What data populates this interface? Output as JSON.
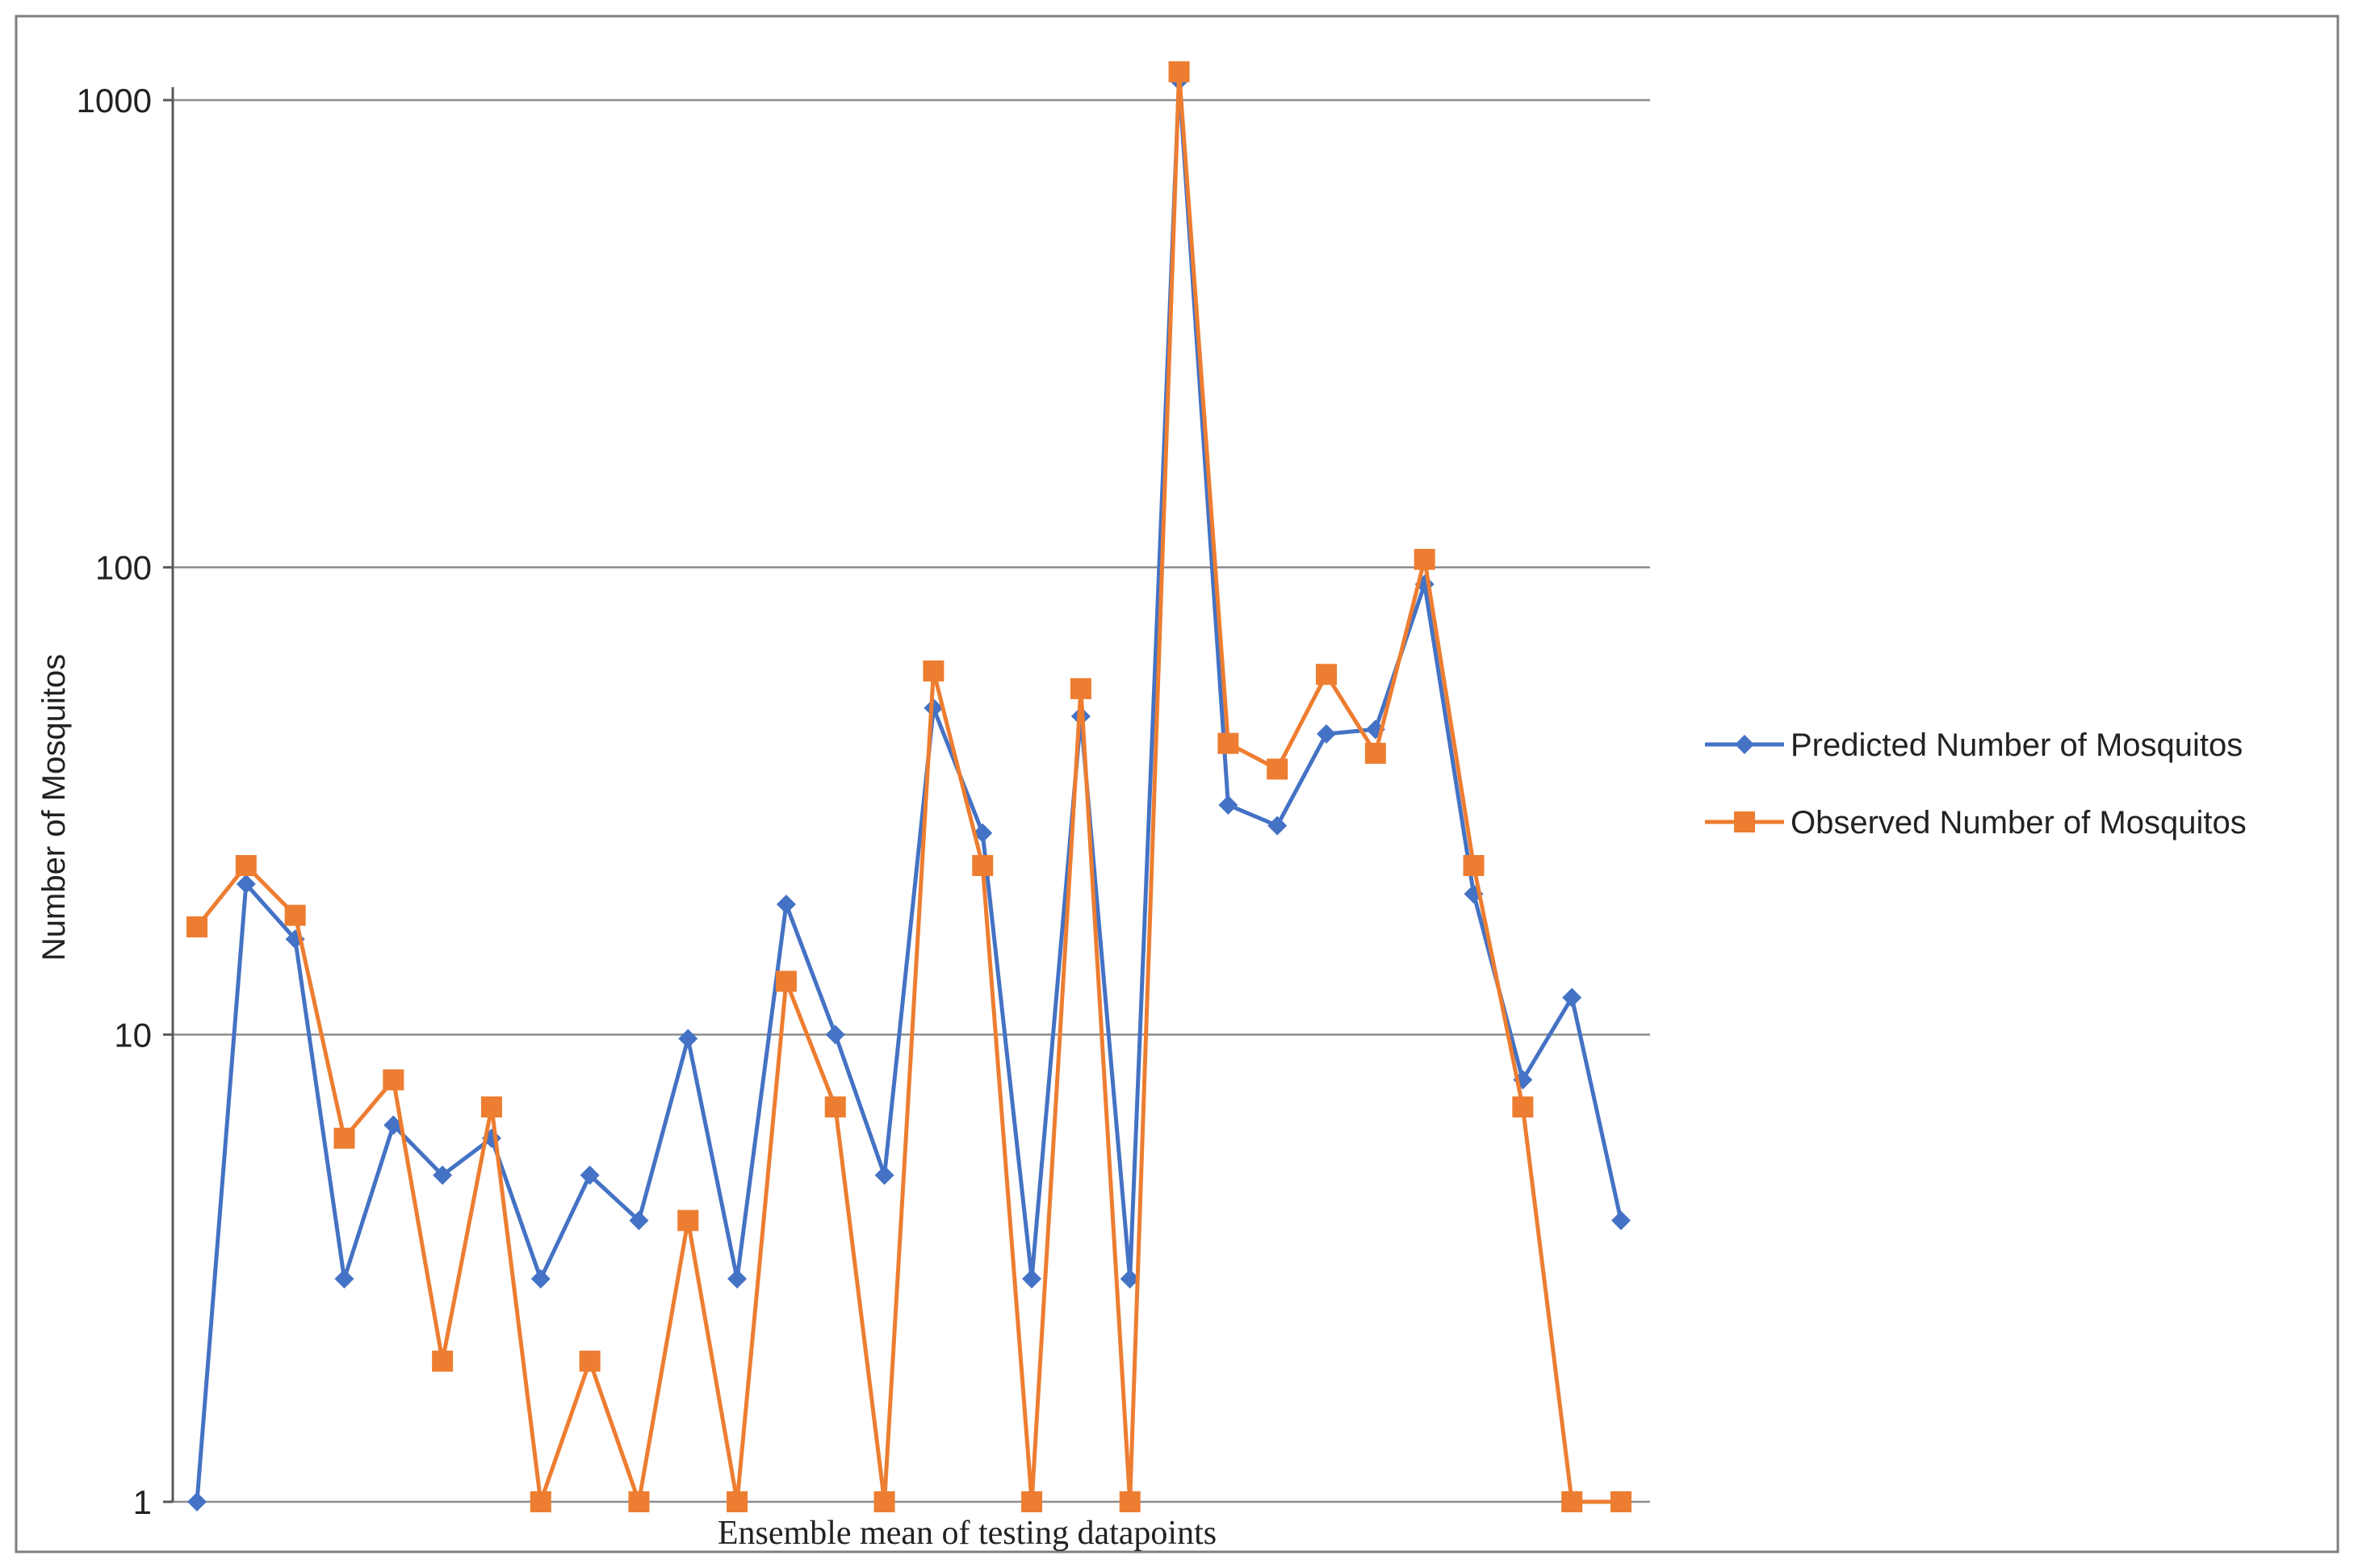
{
  "chart_data": {
    "type": "line",
    "xlabel": "Ensemble mean of testing datapoints",
    "ylabel": "Number of Mosquitos",
    "yscale": "log",
    "ylim": [
      1,
      1000
    ],
    "yticks": [
      1,
      10,
      100,
      1000
    ],
    "ytick_labels": [
      "1",
      "10",
      "100",
      "1000"
    ],
    "grid": "horizontal",
    "legend_position": "right",
    "x": [
      1,
      2,
      3,
      4,
      5,
      6,
      7,
      8,
      9,
      10,
      11,
      12,
      13,
      14,
      15,
      16,
      17,
      18,
      19,
      20,
      21,
      22,
      23,
      24,
      25,
      26,
      27,
      28,
      29,
      30
    ],
    "series": [
      {
        "name": "Predicted Number of Mosquitos",
        "color": "#4472C4",
        "marker": "diamond",
        "values": [
          1,
          21,
          16,
          3,
          6.4,
          5,
          6,
          3,
          5,
          4,
          9.8,
          3,
          19,
          10,
          5,
          50,
          27,
          3,
          48,
          3,
          1100,
          31,
          28,
          44,
          45,
          92,
          20,
          8,
          12,
          4
        ]
      },
      {
        "name": "Observed Number of Mosquitos",
        "color": "#ED7D31",
        "marker": "square",
        "values": [
          17,
          23,
          18,
          6,
          8,
          2,
          7,
          1,
          2,
          1,
          4,
          1,
          13,
          7,
          1,
          60,
          23,
          1,
          55,
          1,
          1150,
          42,
          37,
          59,
          40,
          104,
          23,
          7,
          1,
          1
        ]
      }
    ]
  }
}
